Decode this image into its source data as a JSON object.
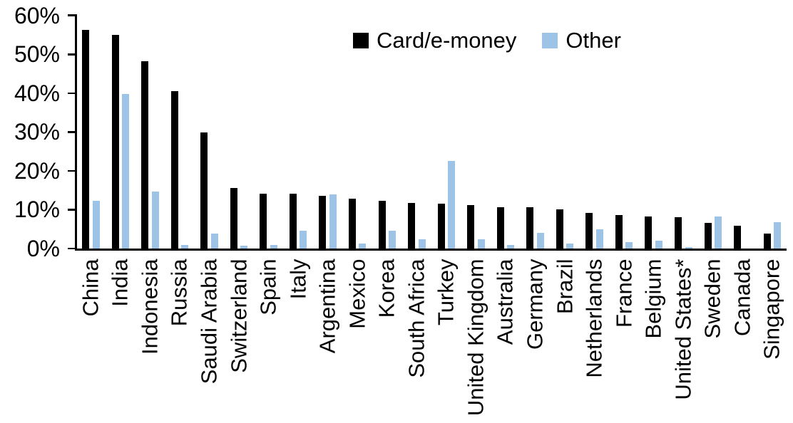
{
  "legend": {
    "items": [
      {
        "label": "Card/e-money",
        "color": "#000000"
      },
      {
        "label": "Other",
        "color": "#9DC3E6"
      }
    ]
  },
  "chart_data": {
    "type": "bar",
    "title": "",
    "xlabel": "",
    "ylabel": "",
    "ylim": [
      0,
      60
    ],
    "ytick_step": 10,
    "ytick_format": "percent",
    "ytick_labels": [
      "0%",
      "10%",
      "20%",
      "30%",
      "40%",
      "50%",
      "60%"
    ],
    "grid": false,
    "legend_position": "top-center",
    "categories": [
      "China",
      "India",
      "Indonesia",
      "Russia",
      "Saudi Arabia",
      "Switzerland",
      "Spain",
      "Italy",
      "Argentina",
      "Mexico",
      "Korea",
      "South Africa",
      "Turkey",
      "United Kingdom",
      "Australia",
      "Germany",
      "Brazil",
      "Netherlands",
      "France",
      "Belgium",
      "United States*",
      "Sweden",
      "Canada",
      "Singapore"
    ],
    "series": [
      {
        "name": "Card/e-money",
        "color": "#000000",
        "values": [
          56.3,
          55.0,
          48.3,
          40.5,
          29.8,
          15.6,
          14.2,
          14.1,
          13.5,
          12.9,
          12.3,
          11.8,
          11.6,
          11.1,
          10.7,
          10.6,
          10.0,
          9.2,
          8.7,
          8.2,
          8.0,
          6.6,
          5.9,
          3.8
        ]
      },
      {
        "name": "Other",
        "color": "#9DC3E6",
        "values": [
          12.3,
          39.7,
          14.6,
          1.0,
          3.9,
          0.8,
          1.0,
          4.6,
          13.9,
          1.3,
          4.6,
          2.4,
          22.6,
          2.4,
          1.0,
          4.0,
          1.2,
          4.9,
          1.6,
          2.1,
          0.4,
          8.2,
          0.0,
          6.7
        ]
      }
    ]
  }
}
